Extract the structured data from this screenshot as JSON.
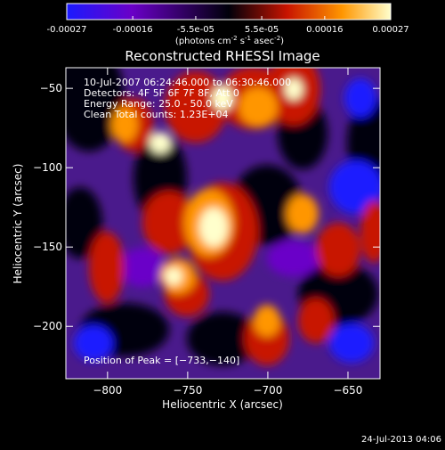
{
  "colorbar": {
    "tick_labels": [
      "-0.00027",
      "-0.00016",
      "-5.5e-05",
      "5.5e-05",
      "0.00016",
      "0.00027"
    ],
    "tick_values": [
      -0.00027,
      -0.00016,
      -5.5e-05,
      5.5e-05,
      0.00016,
      0.00027
    ],
    "range": [
      -0.00027,
      0.00027
    ],
    "unit_base": "(photons cm",
    "unit_exp1": "-2",
    "unit_mid": " s",
    "unit_exp2": "-1",
    "unit_mid2": " asec",
    "unit_exp3": "-2",
    "unit_end": ")",
    "colors": [
      "#1a1aff",
      "#6a00c8",
      "#00000a",
      "#c81400",
      "#ff9600",
      "#ffffcc"
    ]
  },
  "chart_data": {
    "type": "heatmap",
    "title": "Reconstructed RHESSI Image",
    "xlabel": "Heliocentric X (arcsec)",
    "ylabel": "Heliocentric Y (arcsec)",
    "xlim": [
      -826,
      -630
    ],
    "ylim": [
      -233,
      -37
    ],
    "x_ticks": [
      -800,
      -750,
      -700,
      -650
    ],
    "y_ticks": [
      -50,
      -100,
      -150,
      -200
    ],
    "x_tick_labels": [
      "−800",
      "−750",
      "−700",
      "−650"
    ],
    "y_tick_labels": [
      "−50",
      "−100",
      "−150",
      "−200"
    ],
    "grid": false,
    "peak": {
      "x": -733,
      "y": -140
    },
    "annotations": {
      "time_range": "10-Jul-2007 06:24:46.000 to 06:30:46.000",
      "detectors": "Detectors: 4F 5F 6F 7F 8F, Att 0",
      "energy": "Energy Range: 25.0 - 50.0 keV",
      "clean": "Clean     Total counts: 1.23E+04",
      "peak_text": "Position of Peak = [−733,−140]"
    }
  },
  "footer": {
    "timestamp": "24-Jul-2013 04:06"
  }
}
